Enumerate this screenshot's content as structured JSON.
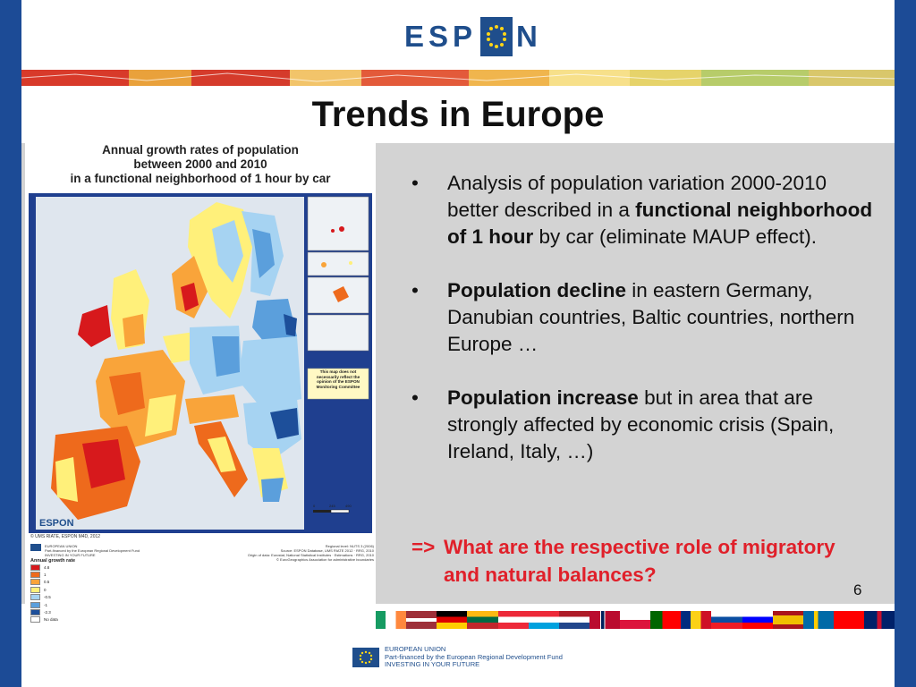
{
  "header": {
    "logo_left": "ESP",
    "logo_right": "N"
  },
  "slide": {
    "title": "Trends in Europe",
    "page_number": "6"
  },
  "map": {
    "title_line1": "Annual growth rates of population",
    "title_line2": "between 2000 and 2010",
    "title_line3": "in a functional neighborhood of 1 hour by car",
    "disclaimer": "This map does not necessarily reflect the opinion of the ESPON Monitoring Committee",
    "credit": "© UMS RIATE, ESPON M4D, 2012",
    "eu_note_line1": "EUROPEAN UNION",
    "eu_note_line2": "Part-financed by the European Regional Development Fund",
    "eu_note_line3": "INVESTING IN YOUR FUTURE",
    "source_line1": "Regional level: NUTS 3 (2006)",
    "source_line2": "Source: ESPON Database, UMS RIATE 2012 · RRG, 2010",
    "source_line3": "Origin of data: Eurostat, National Statistical Institutes · Estimations · RRG, 2010",
    "source_line4": "© EuroGeographics Association for administrative boundaries",
    "scale_0": "0",
    "scale_1": "245",
    "scale_2": "490",
    "legend_title": "Annual growth rate",
    "legend": [
      {
        "label": "4.8",
        "color": "#d7191c"
      },
      {
        "label": "1",
        "color": "#ee6a1c"
      },
      {
        "label": "0.5",
        "color": "#f9a43a"
      },
      {
        "label": "0",
        "color": "#fff07a"
      },
      {
        "label": "-0.5",
        "color": "#a6d3f2"
      },
      {
        "label": "-1",
        "color": "#5b9fdc"
      },
      {
        "label": "-2.3",
        "color": "#1d4f9a"
      },
      {
        "label": "No data",
        "color": "#ffffff"
      }
    ]
  },
  "bullets": [
    {
      "symbol": "•",
      "pre": "Analysis of population variation 2000-2010 better described in a ",
      "bold": "functional neighborhood of 1 hour",
      "post": " by car (eliminate MAUP effect)."
    },
    {
      "symbol": "•",
      "pre": "",
      "bold": "Population decline",
      "post": " in eastern Germany, Danubian countries, Baltic countries, northern Europe …"
    },
    {
      "symbol": "•",
      "pre": "",
      "bold": "Population increase",
      "post": " but in area that are strongly affected by economic crisis (Spain, Ireland, Italy, …)"
    }
  ],
  "question": {
    "arrow": "=>",
    "text": "What are the respective role of migratory and natural balances?"
  },
  "footer": {
    "line1": "EUROPEAN UNION",
    "line2": "Part-financed by the European Regional Development Fund",
    "line3": "INVESTING IN YOUR FUTURE"
  },
  "colors": {
    "frame": "#1c4b96",
    "espon_blue": "#1f4e8c",
    "question_red": "#e0202a",
    "panel_grey": "#d3d3d3"
  }
}
